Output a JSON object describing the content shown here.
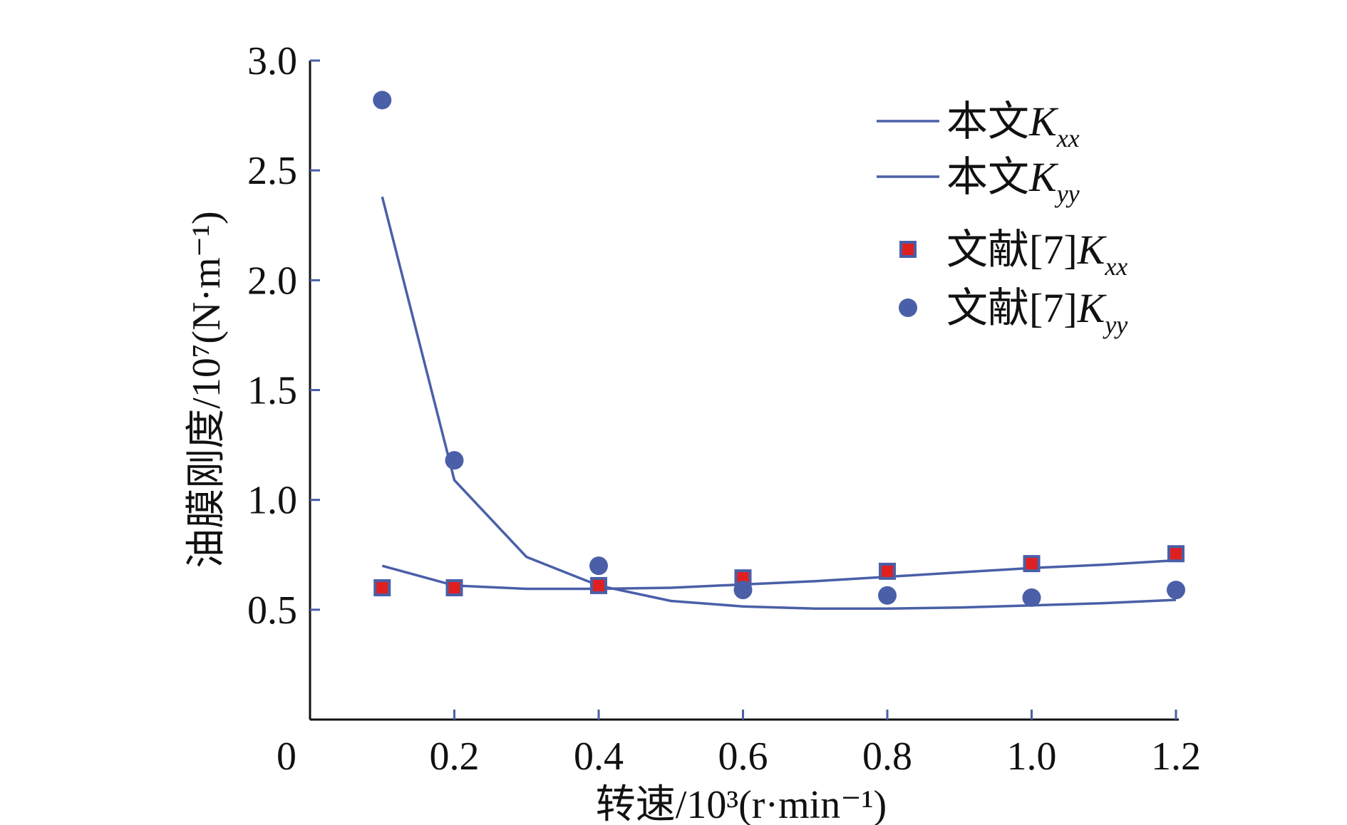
{
  "chart_data": {
    "type": "line",
    "title": "",
    "xlabel": "转速/10³(r·min⁻¹)",
    "ylabel": "油膜刚度/10⁷(N·m⁻¹)",
    "x_origin_label": "0",
    "xlim": [
      0,
      1.2
    ],
    "ylim": [
      0,
      3.0
    ],
    "x_ticks": [
      0.2,
      0.4,
      0.6,
      0.8,
      1.0,
      1.2
    ],
    "x_tick_labels": [
      "0.2",
      "0.4",
      "0.6",
      "0.8",
      "1.0",
      "1.2"
    ],
    "y_ticks": [
      0.5,
      1.0,
      1.5,
      2.0,
      2.5,
      3.0
    ],
    "y_tick_labels": [
      "0.5",
      "1.0",
      "1.5",
      "2.0",
      "2.5",
      "3.0"
    ],
    "grid": false,
    "legend_position": "top-right",
    "series": [
      {
        "name": "本文Kxx",
        "legend_main": "本文",
        "legend_k": "K",
        "legend_sub": "xx",
        "kind": "line",
        "color": "#4a5fa8",
        "x": [
          0.1,
          0.2,
          0.3,
          0.4,
          0.5,
          0.6,
          0.7,
          0.8,
          0.9,
          1.0,
          1.1,
          1.2
        ],
        "y": [
          0.7,
          0.61,
          0.595,
          0.595,
          0.6,
          0.615,
          0.63,
          0.65,
          0.67,
          0.69,
          0.705,
          0.725
        ]
      },
      {
        "name": "本文Kyy",
        "legend_main": "本文",
        "legend_k": "K",
        "legend_sub": "yy",
        "kind": "line",
        "color": "#4a5fa8",
        "x": [
          0.1,
          0.2,
          0.3,
          0.4,
          0.5,
          0.6,
          0.7,
          0.8,
          0.9,
          1.0,
          1.1,
          1.2
        ],
        "y": [
          2.38,
          1.09,
          0.74,
          0.61,
          0.54,
          0.515,
          0.505,
          0.505,
          0.51,
          0.52,
          0.53,
          0.545
        ]
      },
      {
        "name": "文献[7]Kxx",
        "legend_main": "文献[7]",
        "legend_k": "K",
        "legend_sub": "xx",
        "kind": "square-marker",
        "color": "#4a5fa8",
        "inner_color": "#e02020",
        "x": [
          0.1,
          0.2,
          0.4,
          0.6,
          0.8,
          1.0,
          1.2
        ],
        "y": [
          0.6,
          0.6,
          0.61,
          0.645,
          0.675,
          0.71,
          0.755
        ]
      },
      {
        "name": "文献[7]Kyy",
        "legend_main": "文献[7]",
        "legend_k": "K",
        "legend_sub": "yy",
        "kind": "circle-marker",
        "color": "#4a5fa8",
        "x": [
          0.1,
          0.2,
          0.4,
          0.6,
          0.8,
          1.0,
          1.2
        ],
        "y": [
          2.82,
          1.18,
          0.7,
          0.59,
          0.565,
          0.555,
          0.59
        ]
      }
    ]
  }
}
